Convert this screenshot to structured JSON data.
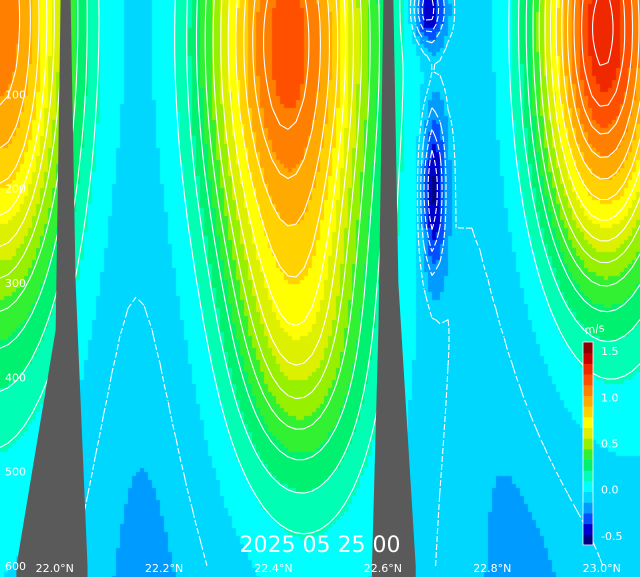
{
  "chart_data": {
    "type": "heatmap",
    "title": "2025 05 25 00",
    "units": "m/s",
    "xlabel": "",
    "ylabel": "",
    "x_ticks": [
      "22.0°N",
      "22.2°N",
      "22.4°N",
      "22.6°N",
      "22.8°N",
      "23.0°N"
    ],
    "y_ticks": [
      "100",
      "200",
      "300",
      "400",
      "500",
      "600"
    ],
    "xlim": [
      21.9,
      23.07
    ],
    "ylim": [
      0,
      600
    ],
    "y_inverted": true,
    "colorbar": {
      "ticks": [
        "1.5",
        "1.0",
        "0.5",
        "0.0",
        "-0.5"
      ],
      "range": [
        -0.6,
        1.6
      ],
      "colors": [
        "#000080",
        "#0000cd",
        "#0050ff",
        "#009bff",
        "#00d7ff",
        "#00ffff",
        "#00ffb4",
        "#00f070",
        "#32f032",
        "#96f000",
        "#dcf000",
        "#ffff00",
        "#ffd200",
        "#ffaa00",
        "#ff8000",
        "#ff5000",
        "#f02800",
        "#c80000",
        "#8b0000"
      ]
    },
    "contour_style": {
      "positive": "solid",
      "negative": "dashed",
      "line_color": "#ffffff"
    },
    "land_color": "#5a5a5a",
    "land_features": [
      {
        "name": "ridge-1",
        "lat_top": 22.02,
        "lat_bottom": [
          21.93,
          22.06
        ]
      },
      {
        "name": "ridge-2",
        "lat_top": 22.61,
        "lat_bottom": [
          22.58,
          22.66
        ]
      }
    ],
    "velocity_cores": [
      {
        "name": "core-west",
        "lat": 21.9,
        "depth": 20,
        "value": 1.1
      },
      {
        "name": "core-central",
        "lat": 22.42,
        "depth": 30,
        "value": 1.3
      },
      {
        "name": "core-east",
        "lat": 23.0,
        "depth": 20,
        "value": 1.5
      },
      {
        "name": "min-mid",
        "lat": 22.69,
        "depth": 200,
        "value": -0.3
      },
      {
        "name": "min-top",
        "lat": 22.68,
        "depth": 10,
        "value": -0.5
      }
    ]
  }
}
